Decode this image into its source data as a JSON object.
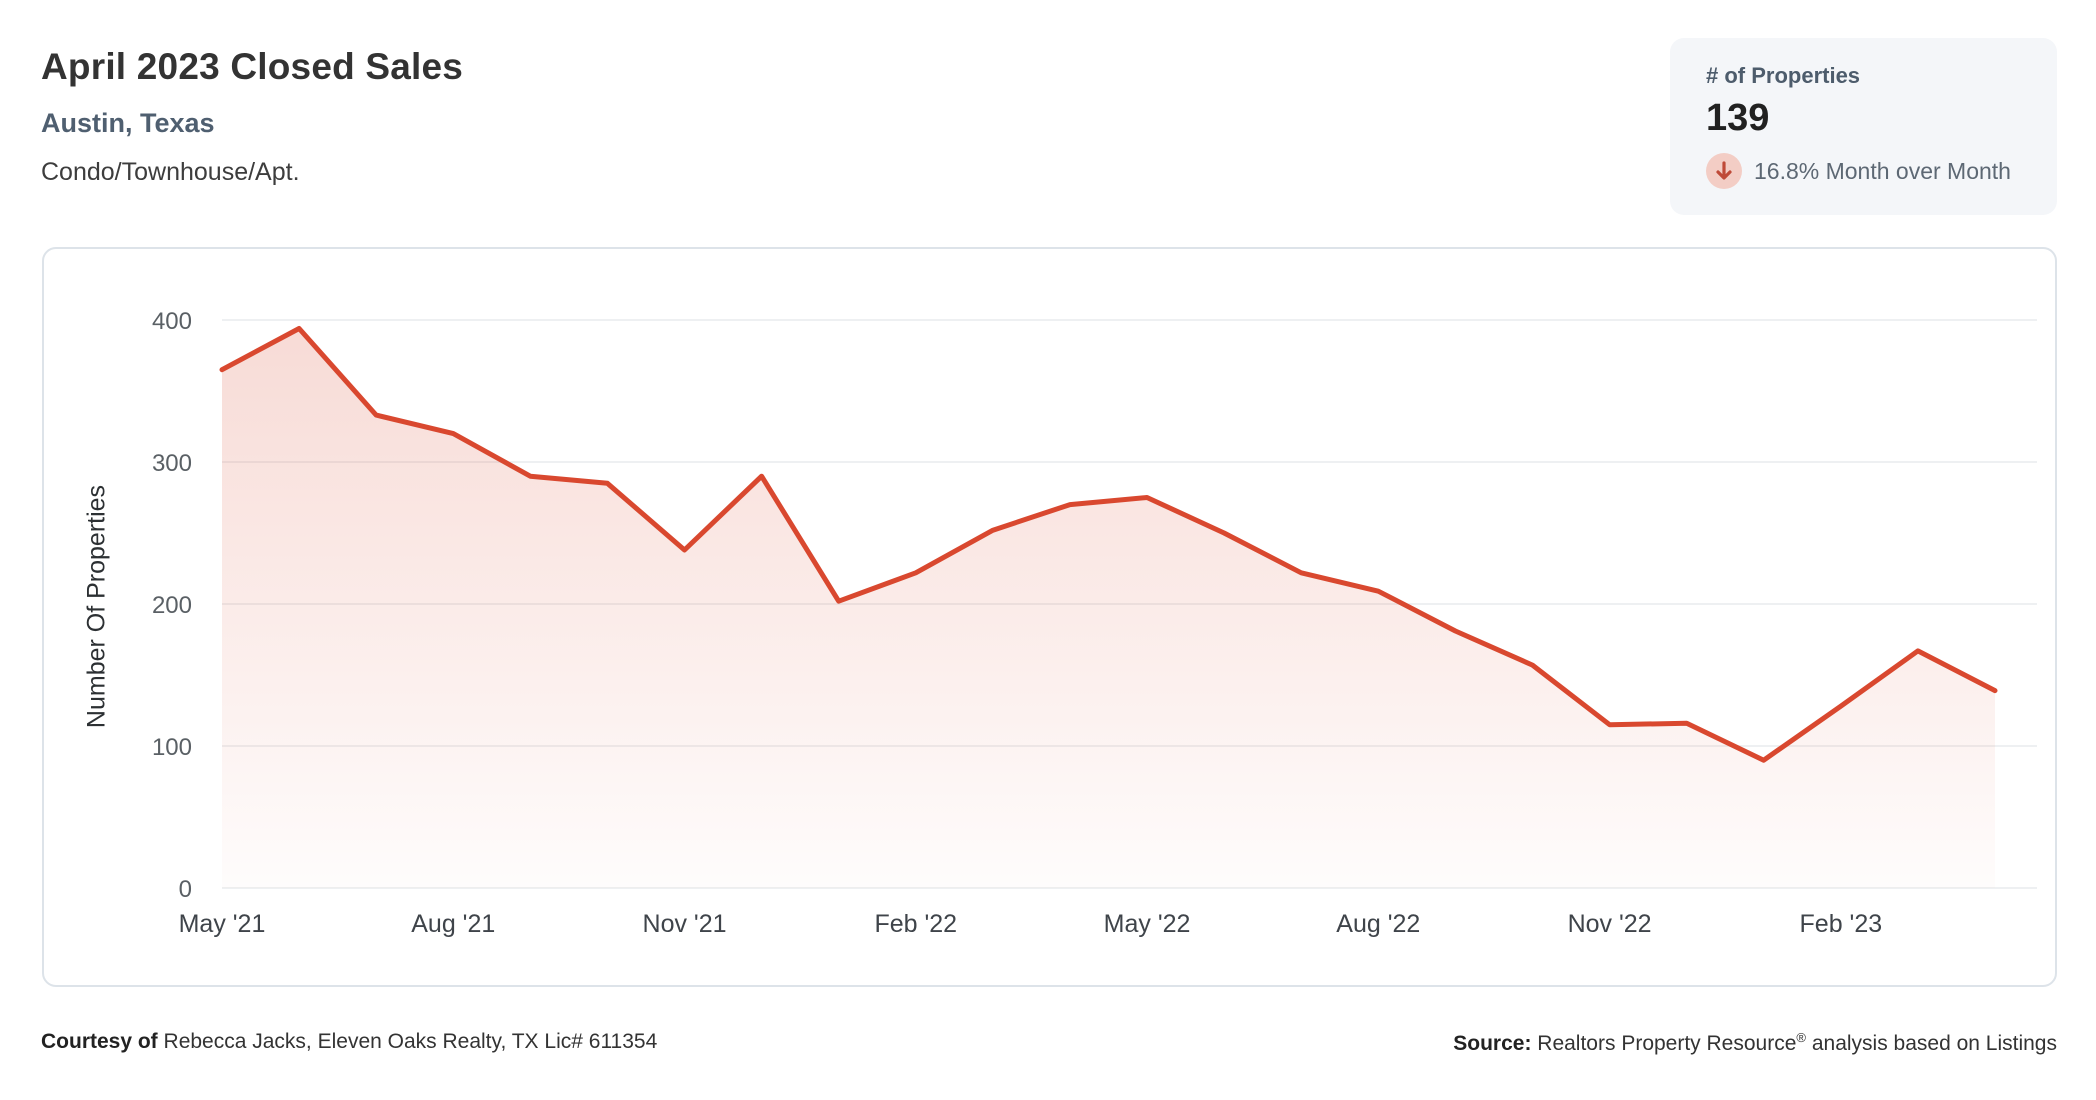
{
  "header": {
    "title": "April 2023 Closed Sales",
    "subtitle": "Austin, Texas",
    "property_type": "Condo/Townhouse/Apt."
  },
  "stat_card": {
    "label": "# of Properties",
    "value": "139",
    "mom_text": "16.8% Month over Month",
    "direction": "down",
    "arrow_color": "#bf4a38",
    "arrow_bg_color": "#f3cdc5"
  },
  "chart_data": {
    "type": "area",
    "title": "April 2023 Closed Sales - Austin, Texas",
    "ylabel": "Number Of Properties",
    "xlabel": "",
    "x": [
      "May '21",
      "Jun '21",
      "Jul '21",
      "Aug '21",
      "Sep '21",
      "Oct '21",
      "Nov '21",
      "Dec '21",
      "Jan '22",
      "Feb '22",
      "Mar '22",
      "Apr '22",
      "May '22",
      "Jun '22",
      "Jul '22",
      "Aug '22",
      "Sep '22",
      "Oct '22",
      "Nov '22",
      "Dec '22",
      "Jan '23",
      "Feb '23",
      "Mar '23",
      "Apr '23"
    ],
    "values": [
      365,
      394,
      333,
      320,
      290,
      285,
      238,
      290,
      202,
      222,
      252,
      270,
      275,
      250,
      222,
      209,
      181,
      157,
      115,
      116,
      90,
      128,
      167,
      139
    ],
    "x_tick_labels": [
      "May '21",
      "Aug '21",
      "Nov '21",
      "Feb '22",
      "May '22",
      "Aug '22",
      "Nov '22",
      "Feb '23"
    ],
    "x_tick_indices": [
      0,
      3,
      6,
      9,
      12,
      15,
      18,
      21
    ],
    "y_ticks": [
      0,
      100,
      200,
      300,
      400
    ],
    "ylim": [
      0,
      400
    ],
    "grid": true,
    "legend": "none",
    "line_color": "#d9482f",
    "fill_top_color": "rgba(217,73,47,0.20)",
    "fill_bottom_color": "rgba(217,73,47,0.015)",
    "gridline_color": "#e9ebed",
    "y_tick_color": "#5a6065",
    "x_tick_color": "#3f444a"
  },
  "footer": {
    "courtesy_label": "Courtesy of",
    "courtesy_text": " Rebecca Jacks, Eleven Oaks Realty, TX Lic# 611354",
    "source_label": "Source:",
    "source_text_1": " Realtors Property Resource",
    "source_reg": "®",
    "source_text_2": " analysis based on Listings"
  }
}
